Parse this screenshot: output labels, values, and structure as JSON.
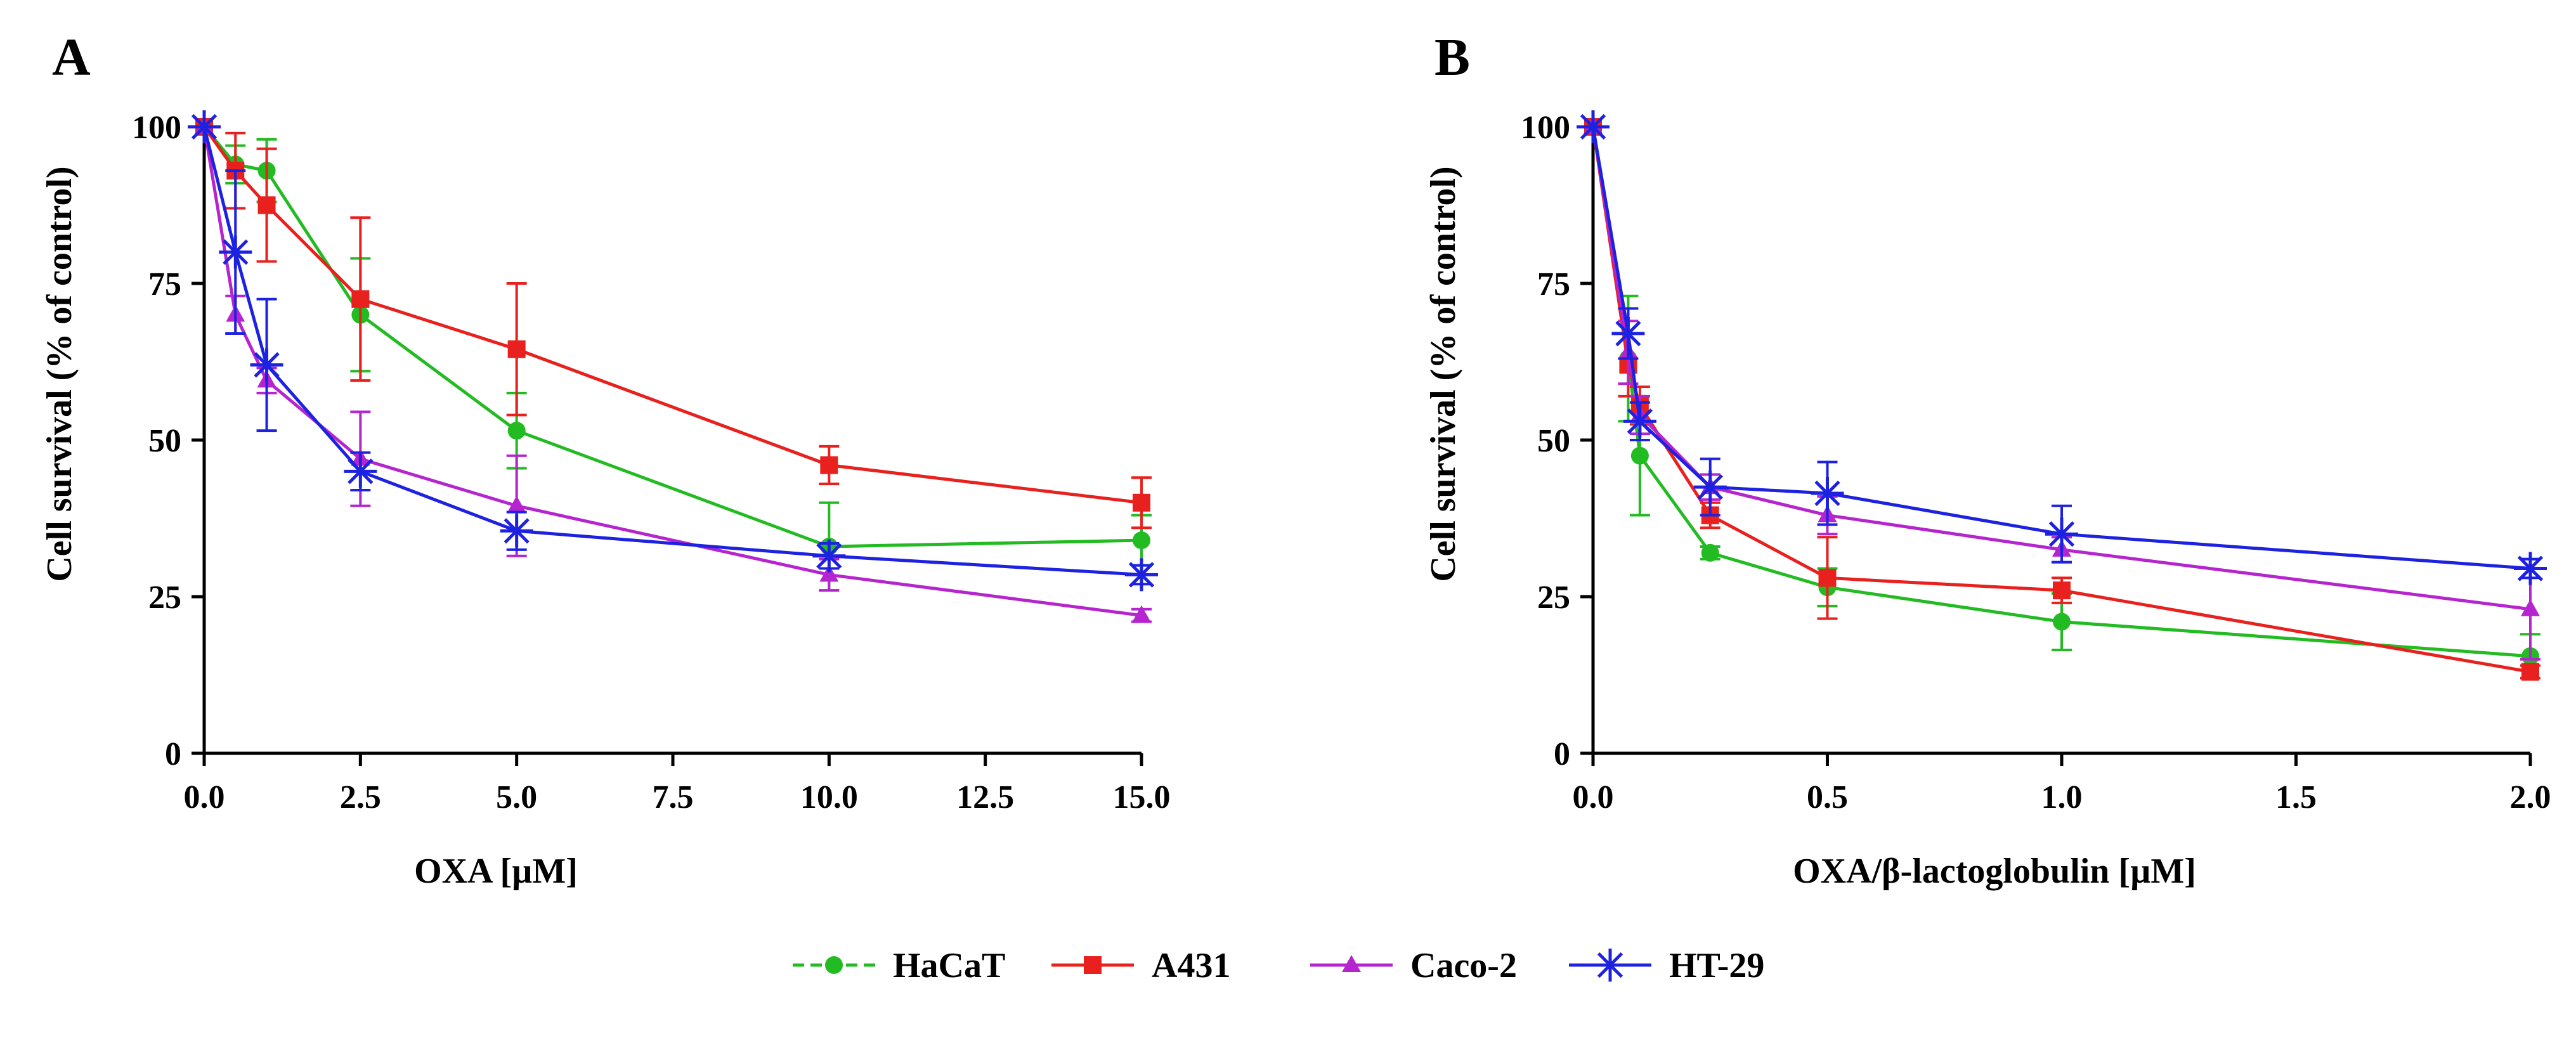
{
  "chart_data": [
    {
      "type": "line",
      "panel_label": "A",
      "xlabel": "OXA [µM]",
      "ylabel": "Cell survival (% of control)",
      "xlim": [
        0,
        15
      ],
      "ylim": [
        0,
        100
      ],
      "xticks": [
        "0.0",
        "2.5",
        "5.0",
        "7.5",
        "10.0",
        "12.5",
        "15.0"
      ],
      "xtick_values": [
        0,
        2.5,
        5,
        7.5,
        10,
        12.5,
        15
      ],
      "yticks": [
        "0",
        "25",
        "50",
        "75",
        "100"
      ],
      "ytick_values": [
        0,
        25,
        50,
        75,
        100
      ],
      "grid": false,
      "series": [
        {
          "name": "HaCaT",
          "color": "#22bb22",
          "marker": "circle",
          "x": [
            0,
            0.5,
            1,
            2.5,
            5,
            10,
            15
          ],
          "y": [
            100,
            94,
            93,
            70,
            51.5,
            33,
            34
          ],
          "err": [
            0,
            3,
            5,
            9,
            6,
            7,
            4
          ]
        },
        {
          "name": "A431",
          "color": "#e8201e",
          "marker": "square",
          "x": [
            0,
            0.5,
            1,
            2.5,
            5,
            10,
            15
          ],
          "y": [
            100,
            93,
            87.5,
            72.5,
            64.5,
            46,
            40
          ],
          "err": [
            0,
            6,
            9,
            13,
            10.5,
            3,
            4
          ]
        },
        {
          "name": "Caco-2",
          "color": "#b624d0",
          "marker": "triangle",
          "x": [
            0,
            0.5,
            1,
            2.5,
            5,
            10,
            15
          ],
          "y": [
            100,
            70,
            59.5,
            47,
            39.5,
            28.5,
            22
          ],
          "err": [
            0,
            3,
            2,
            7.5,
            8,
            2.5,
            1
          ]
        },
        {
          "name": "HT-29",
          "color": "#1d22e0",
          "marker": "asterisk",
          "x": [
            0,
            0.5,
            1,
            2.5,
            5,
            10,
            15
          ],
          "y": [
            100,
            80,
            62,
            45,
            35.5,
            31.5,
            28.5
          ],
          "err": [
            0,
            13,
            10.5,
            3,
            3,
            2,
            1.5
          ]
        }
      ]
    },
    {
      "type": "line",
      "panel_label": "B",
      "xlabel": "OXA/β-lactoglobulin [µM]",
      "ylabel": "Cell survival (% of control)",
      "xlim": [
        0,
        2
      ],
      "ylim": [
        0,
        100
      ],
      "xticks": [
        "0.0",
        "0.5",
        "1.0",
        "1.5",
        "2.0"
      ],
      "xtick_values": [
        0,
        0.5,
        1,
        1.5,
        2
      ],
      "yticks": [
        "0",
        "25",
        "50",
        "75",
        "100"
      ],
      "ytick_values": [
        0,
        25,
        50,
        75,
        100
      ],
      "grid": false,
      "series": [
        {
          "name": "HaCaT",
          "color": "#22bb22",
          "marker": "circle",
          "x": [
            0,
            0.075,
            0.1,
            0.25,
            0.5,
            1,
            2
          ],
          "y": [
            100,
            63,
            47.5,
            32,
            26.5,
            21,
            15.5
          ],
          "err": [
            0,
            10,
            9.5,
            1,
            3,
            4.5,
            3.5
          ]
        },
        {
          "name": "A431",
          "color": "#e8201e",
          "marker": "square",
          "x": [
            0,
            0.075,
            0.1,
            0.25,
            0.5,
            1,
            2
          ],
          "y": [
            100,
            62,
            55.5,
            38,
            28,
            26,
            13
          ],
          "err": [
            0,
            5,
            3,
            2,
            6.5,
            2,
            1
          ]
        },
        {
          "name": "Caco-2",
          "color": "#b624d0",
          "marker": "triangle",
          "x": [
            0,
            0.075,
            0.1,
            0.25,
            0.5,
            1,
            2
          ],
          "y": [
            100,
            64,
            54,
            42.5,
            38,
            32.5,
            23
          ],
          "err": [
            0,
            5,
            3,
            2,
            3,
            2,
            8
          ]
        },
        {
          "name": "HT-29",
          "color": "#1d22e0",
          "marker": "asterisk",
          "x": [
            0,
            0.075,
            0.1,
            0.25,
            0.5,
            1,
            2
          ],
          "y": [
            100,
            67,
            53,
            42.5,
            41.5,
            35,
            29.5
          ],
          "err": [
            0,
            4,
            3,
            4.5,
            5,
            4.5,
            1.5
          ]
        }
      ]
    }
  ],
  "legend": {
    "placement": "bottom-center",
    "items": [
      {
        "name": "HaCaT",
        "color": "#22bb22",
        "marker": "circle",
        "dashed": true
      },
      {
        "name": "A431",
        "color": "#e8201e",
        "marker": "square",
        "dashed": false
      },
      {
        "name": "Caco-2",
        "color": "#b624d0",
        "marker": "triangle",
        "dashed": false
      },
      {
        "name": "HT-29",
        "color": "#1d22e0",
        "marker": "asterisk",
        "dashed": false
      }
    ]
  }
}
